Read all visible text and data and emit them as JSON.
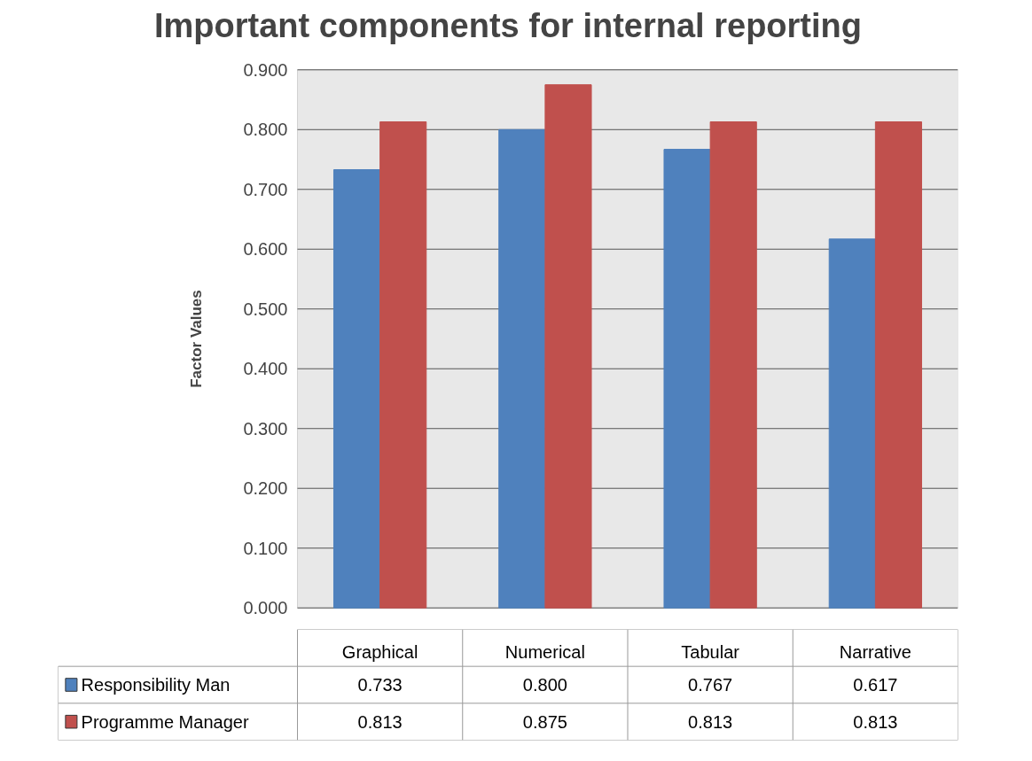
{
  "chart_data": {
    "type": "bar",
    "title": "Important components for internal reporting",
    "ylabel": "Factor Values",
    "categories": [
      "Graphical",
      "Numerical",
      "Tabular",
      "Narrative"
    ],
    "series": [
      {
        "name": "Responsibility Man",
        "color": "#4f81bd",
        "values": [
          0.733,
          0.8,
          0.767,
          0.617
        ],
        "value_labels": [
          "0.733",
          "0.800",
          "0.767",
          "0.617"
        ]
      },
      {
        "name": "Programme Manager",
        "color": "#c0504d",
        "values": [
          0.813,
          0.875,
          0.813,
          0.813
        ],
        "value_labels": [
          "0.813",
          "0.875",
          "0.813",
          "0.813"
        ]
      }
    ],
    "ylim": [
      0,
      0.9
    ],
    "yticks": [
      {
        "value": 0,
        "label": "0.000"
      },
      {
        "value": 0.1,
        "label": "0.100"
      },
      {
        "value": 0.2,
        "label": "0.200"
      },
      {
        "value": 0.3,
        "label": "0.300"
      },
      {
        "value": 0.4,
        "label": "0.400"
      },
      {
        "value": 0.5,
        "label": "0.500"
      },
      {
        "value": 0.6,
        "label": "0.600"
      },
      {
        "value": 0.7,
        "label": "0.700"
      },
      {
        "value": 0.8,
        "label": "0.800"
      },
      {
        "value": 0.9,
        "label": "0.900"
      }
    ],
    "grid": "y",
    "legend": "bottom left"
  }
}
